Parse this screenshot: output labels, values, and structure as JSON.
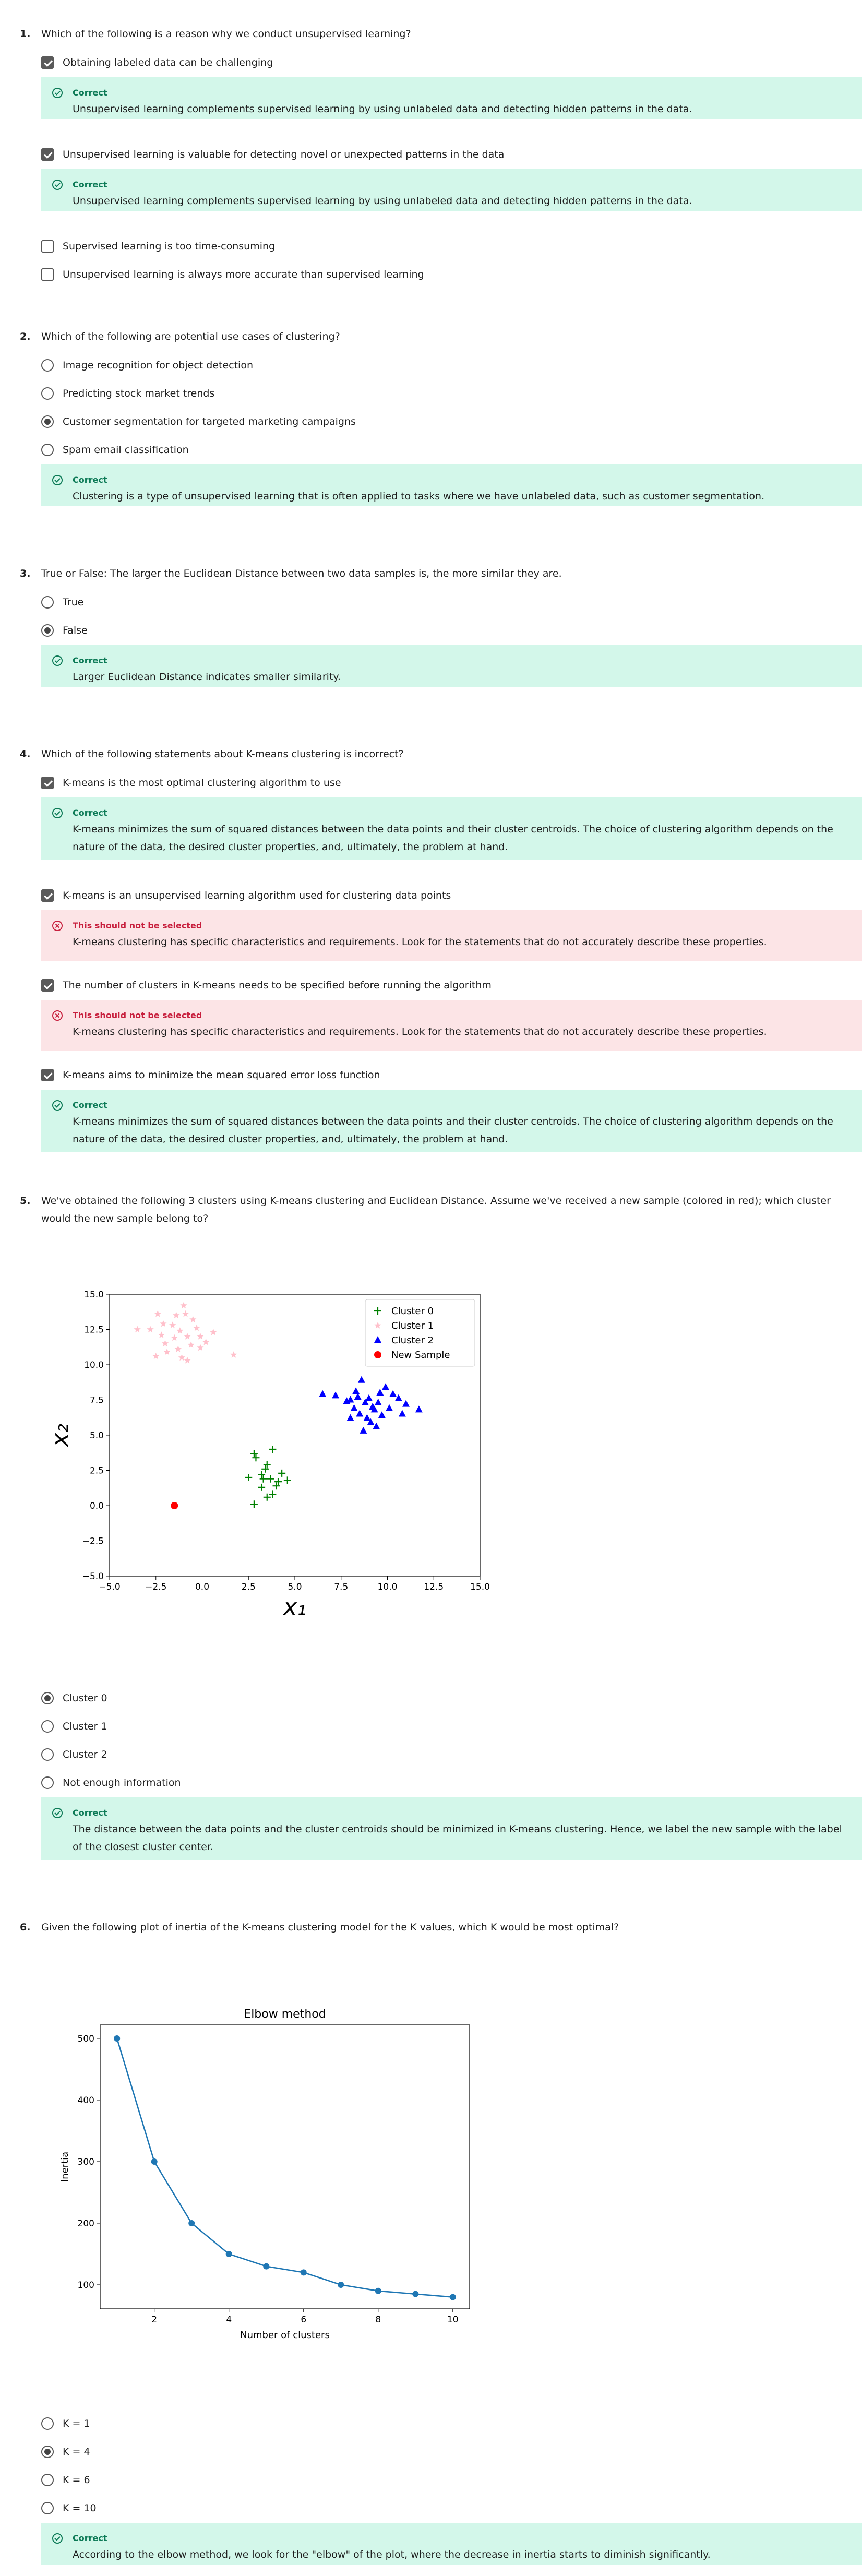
{
  "questions": [
    {
      "number": "1.",
      "text": "Which of the following is a reason why we conduct unsupervised learning?",
      "options": [
        {
          "label": "Obtaining labeled data can be challenging",
          "checked": true
        },
        {
          "label": "Unsupervised learning is valuable for detecting novel or unexpected patterns in the data",
          "checked": true
        },
        {
          "label": "Supervised learning is too time-consuming",
          "checked": false
        },
        {
          "label": "Unsupervised learning is always more accurate than supervised learning",
          "checked": false
        }
      ],
      "feedback": [
        {
          "title": "Correct",
          "text": "Unsupervised learning complements supervised learning by using unlabeled data and detecting hidden patterns in the data."
        },
        {
          "title": "Correct",
          "text": "Unsupervised learning complements supervised learning by using unlabeled data and detecting hidden patterns in the data."
        }
      ]
    },
    {
      "number": "2.",
      "text": "Which of the following are potential use cases of clustering?",
      "options": [
        {
          "label": "Image recognition for object detection",
          "checked": false
        },
        {
          "label": "Predicting stock market trends",
          "checked": false
        },
        {
          "label": "Customer segmentation for targeted marketing campaigns",
          "checked": true
        },
        {
          "label": "Spam email classification",
          "checked": false
        }
      ],
      "feedback": [
        {
          "title": "Correct",
          "text": "Clustering is a type of unsupervised learning that is often applied to tasks where we have unlabeled data, such as customer segmentation."
        }
      ]
    },
    {
      "number": "3.",
      "text": "True or False: The larger the Euclidean Distance between two data samples is, the more similar they are.",
      "options": [
        {
          "label": "True",
          "checked": false
        },
        {
          "label": "False",
          "checked": true
        }
      ],
      "feedback": [
        {
          "title": "Correct",
          "text": "Larger Euclidean Distance indicates smaller similarity."
        }
      ]
    },
    {
      "number": "4.",
      "text": "Which of the following statements about K-means clustering is incorrect?",
      "options": [
        {
          "label": "K-means is the most optimal clustering algorithm to use",
          "checked": true
        },
        {
          "label": "K-means is an unsupervised learning algorithm used for clustering data points",
          "checked": true
        },
        {
          "label": "The number of clusters in K-means needs to be specified before running the algorithm",
          "checked": true
        },
        {
          "label": "K-means aims to minimize the mean squared error loss function",
          "checked": true
        }
      ],
      "feedback": [
        {
          "title": "Correct",
          "text": "K-means minimizes the sum of squared distances between the data points and their cluster centroids. The choice of clustering algorithm depends on the nature of the data, the desired cluster properties, and, ultimately, the problem at hand."
        },
        {
          "title": "This should not be selected",
          "text": "K-means clustering has specific characteristics and requirements. Look for the statements that do not accurately describe these properties."
        },
        {
          "title": "This should not be selected",
          "text": "K-means clustering has specific characteristics and requirements. Look for the statements that do not accurately describe these properties."
        },
        {
          "title": "Correct",
          "text": "K-means minimizes the sum of squared distances between the data points and their cluster centroids. The choice of clustering algorithm depends on the nature of the data, the desired cluster properties, and, ultimately, the problem at hand."
        }
      ]
    },
    {
      "number": "5.",
      "text": "We've obtained the following 3 clusters using K-means clustering and Euclidean Distance. Assume we've received a new sample (colored in red); which cluster would the new sample belong to?",
      "options": [
        {
          "label": "Cluster 0",
          "checked": true
        },
        {
          "label": "Cluster 1",
          "checked": false
        },
        {
          "label": "Cluster 2",
          "checked": false
        },
        {
          "label": "Not enough information",
          "checked": false
        }
      ],
      "feedback": [
        {
          "title": "Correct",
          "text": "The distance between the data points and the cluster centroids should be minimized in K-means clustering. Hence, we label the new sample with the label of the closest cluster center."
        }
      ]
    },
    {
      "number": "6.",
      "text": "Given the following plot of inertia of the K-means clustering model for the K values, which K would be most optimal?",
      "options": [
        {
          "label": "K = 1",
          "checked": false
        },
        {
          "label": "K = 4",
          "checked": true
        },
        {
          "label": "K = 6",
          "checked": false
        },
        {
          "label": "K = 10",
          "checked": false
        }
      ],
      "feedback": [
        {
          "title": "Correct",
          "text": "According to the elbow method, we look for the \"elbow\" of the plot, where the decrease in inertia starts to diminish significantly."
        }
      ]
    }
  ],
  "colors": {
    "correct_bg": "#d3f7ea",
    "correct_fg": "#0c7a56",
    "wrong_bg": "#fce4e6",
    "wrong_fg": "#c8203e"
  },
  "chart_data": [
    {
      "type": "scatter",
      "title": "",
      "xlabel": "x₁",
      "ylabel": "x₂",
      "xlim": [
        -5.0,
        15.0
      ],
      "ylim": [
        -5.0,
        15.0
      ],
      "xticks": [
        "−5.0",
        "−2.5",
        "0.0",
        "2.5",
        "5.0",
        "7.5",
        "10.0",
        "12.5",
        "15.0"
      ],
      "yticks": [
        "−5.0",
        "−2.5",
        "0.0",
        "2.5",
        "5.0",
        "7.5",
        "10.0",
        "12.5",
        "15.0"
      ],
      "legend_position": "top-right",
      "series": [
        {
          "name": "Cluster 0",
          "marker": "plus",
          "color": "#008000",
          "points": [
            [
              2.8,
              3.7
            ],
            [
              2.9,
              3.4
            ],
            [
              3.8,
              4.0
            ],
            [
              3.5,
              2.9
            ],
            [
              3.4,
              2.6
            ],
            [
              3.2,
              2.2
            ],
            [
              2.5,
              2.0
            ],
            [
              3.7,
              1.9
            ],
            [
              4.3,
              2.3
            ],
            [
              4.6,
              1.8
            ],
            [
              4.1,
              1.7
            ],
            [
              3.2,
              1.3
            ],
            [
              3.8,
              0.8
            ],
            [
              3.5,
              0.6
            ],
            [
              2.8,
              0.1
            ],
            [
              3.3,
              1.9
            ],
            [
              4.0,
              1.4
            ]
          ]
        },
        {
          "name": "Cluster 1",
          "marker": "star",
          "color": "#ffc0cb",
          "points": [
            [
              -1.0,
              14.2
            ],
            [
              -1.4,
              13.5
            ],
            [
              -0.5,
              13.2
            ],
            [
              -0.9,
              13.6
            ],
            [
              -1.6,
              12.8
            ],
            [
              -2.1,
              12.9
            ],
            [
              -2.8,
              12.5
            ],
            [
              -1.2,
              12.4
            ],
            [
              -0.3,
              12.6
            ],
            [
              -0.1,
              12.0
            ],
            [
              0.2,
              11.6
            ],
            [
              -0.8,
              12.0
            ],
            [
              -2.2,
              12.1
            ],
            [
              -1.5,
              11.9
            ],
            [
              -0.6,
              11.4
            ],
            [
              -0.1,
              11.2
            ],
            [
              -1.3,
              11.1
            ],
            [
              -2.0,
              11.5
            ],
            [
              -1.9,
              10.9
            ],
            [
              -2.5,
              10.6
            ],
            [
              -1.1,
              10.5
            ],
            [
              -0.8,
              10.3
            ],
            [
              1.7,
              10.7
            ],
            [
              -3.5,
              12.5
            ],
            [
              -2.4,
              13.6
            ],
            [
              0.6,
              12.3
            ]
          ]
        },
        {
          "name": "Cluster 2",
          "marker": "triangle",
          "color": "#0000ff",
          "points": [
            [
              6.5,
              7.9
            ],
            [
              7.2,
              7.8
            ],
            [
              8.0,
              7.5
            ],
            [
              8.6,
              8.9
            ],
            [
              8.3,
              8.1
            ],
            [
              8.8,
              7.3
            ],
            [
              9.2,
              7.0
            ],
            [
              9.6,
              8.0
            ],
            [
              9.9,
              8.4
            ],
            [
              10.3,
              7.9
            ],
            [
              10.6,
              7.6
            ],
            [
              11.0,
              7.2
            ],
            [
              11.7,
              6.8
            ],
            [
              8.5,
              6.5
            ],
            [
              8.9,
              6.2
            ],
            [
              9.3,
              6.8
            ],
            [
              9.7,
              6.4
            ],
            [
              8.2,
              6.9
            ],
            [
              7.8,
              7.4
            ],
            [
              9.1,
              5.9
            ],
            [
              8.7,
              5.3
            ],
            [
              9.4,
              5.6
            ],
            [
              10.1,
              6.9
            ],
            [
              9.0,
              7.6
            ],
            [
              8.0,
              6.2
            ],
            [
              10.8,
              6.5
            ],
            [
              9.5,
              7.3
            ],
            [
              8.4,
              7.7
            ]
          ]
        },
        {
          "name": "New Sample",
          "marker": "circle",
          "color": "#ff0000",
          "points": [
            [
              -1.5,
              0.0
            ]
          ]
        }
      ]
    },
    {
      "type": "line",
      "title": "Elbow method",
      "xlabel": "Number of clusters",
      "ylabel": "Inertia",
      "xlim": [
        0.55,
        10.45
      ],
      "ylim": [
        61,
        522
      ],
      "xticks": [
        2,
        4,
        6,
        8,
        10
      ],
      "yticks": [
        100,
        200,
        300,
        400,
        500
      ],
      "color": "#1f77b4",
      "x": [
        1,
        2,
        3,
        4,
        5,
        6,
        7,
        8,
        9,
        10
      ],
      "y": [
        500,
        300,
        200,
        150,
        130,
        120,
        100,
        90,
        85,
        80
      ]
    }
  ]
}
